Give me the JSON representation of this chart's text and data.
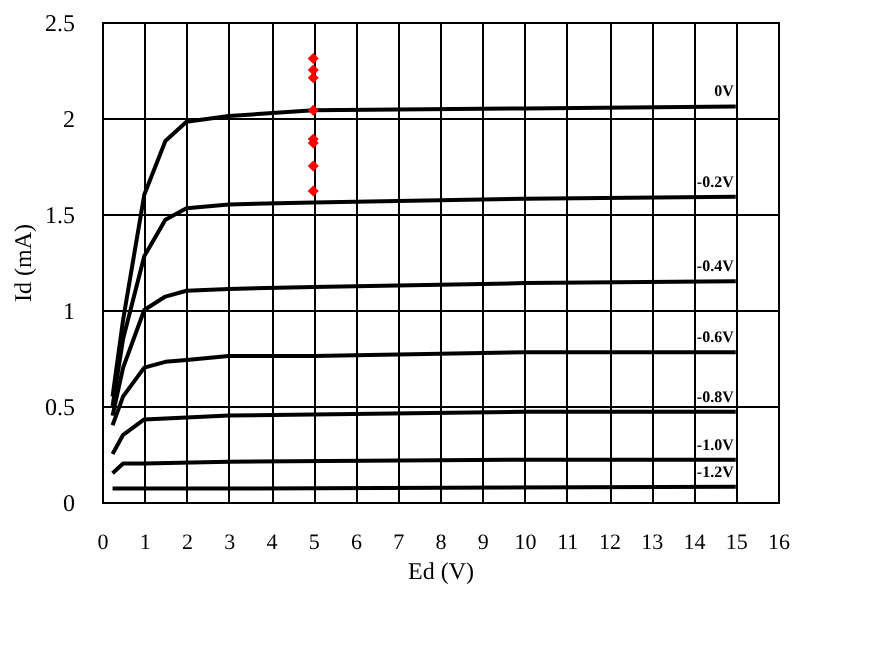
{
  "chart_data": {
    "type": "line",
    "xlabel": "Ed (V)",
    "ylabel": "Id (mA)",
    "xlim": [
      0,
      16
    ],
    "xticks": [
      0,
      1,
      2,
      3,
      4,
      5,
      6,
      7,
      8,
      9,
      10,
      11,
      12,
      13,
      14,
      15,
      16
    ],
    "ylim": [
      0,
      2.5
    ],
    "yticks": [
      0,
      0.5,
      1,
      1.5,
      2,
      2.5
    ],
    "grid": true,
    "legend": false,
    "line_style": "solid",
    "series": [
      {
        "name": "0V",
        "color": "#000000",
        "x": [
          0.25,
          0.5,
          1,
          1.5,
          2,
          3,
          5,
          10,
          15
        ],
        "values": [
          0.55,
          0.95,
          1.6,
          1.88,
          1.98,
          2.01,
          2.04,
          2.05,
          2.06
        ]
      },
      {
        "name": "-0.2V",
        "color": "#000000",
        "x": [
          0.25,
          0.5,
          1,
          1.5,
          2,
          3,
          5,
          10,
          15
        ],
        "values": [
          0.5,
          0.85,
          1.28,
          1.47,
          1.53,
          1.55,
          1.56,
          1.58,
          1.59
        ]
      },
      {
        "name": "-0.4V",
        "color": "#000000",
        "x": [
          0.25,
          0.5,
          1,
          1.5,
          2,
          3,
          5,
          10,
          15
        ],
        "values": [
          0.45,
          0.7,
          1.0,
          1.07,
          1.1,
          1.11,
          1.12,
          1.14,
          1.15
        ]
      },
      {
        "name": "-0.6V",
        "color": "#000000",
        "x": [
          0.25,
          0.5,
          1,
          1.5,
          2,
          3,
          5,
          10,
          15
        ],
        "values": [
          0.4,
          0.55,
          0.7,
          0.73,
          0.74,
          0.76,
          0.76,
          0.78,
          0.78
        ]
      },
      {
        "name": "-0.8V",
        "color": "#000000",
        "x": [
          0.25,
          0.5,
          1,
          2,
          3,
          10,
          15
        ],
        "values": [
          0.25,
          0.35,
          0.43,
          0.44,
          0.45,
          0.47,
          0.47
        ]
      },
      {
        "name": "-1.0V",
        "color": "#000000",
        "x": [
          0.25,
          0.5,
          1,
          3,
          10,
          15
        ],
        "values": [
          0.15,
          0.2,
          0.2,
          0.21,
          0.22,
          0.22
        ]
      },
      {
        "name": "-1.2V",
        "color": "#000000",
        "x": [
          0.25,
          3,
          15
        ],
        "values": [
          0.07,
          0.07,
          0.08
        ]
      },
      {
        "type": "scatter",
        "marker": "diamond",
        "color": "#ff0000",
        "x": [
          5,
          5,
          5,
          5,
          5,
          5,
          5,
          5
        ],
        "values": [
          2.31,
          2.25,
          2.21,
          2.04,
          1.89,
          1.87,
          1.75,
          1.62
        ]
      }
    ]
  }
}
